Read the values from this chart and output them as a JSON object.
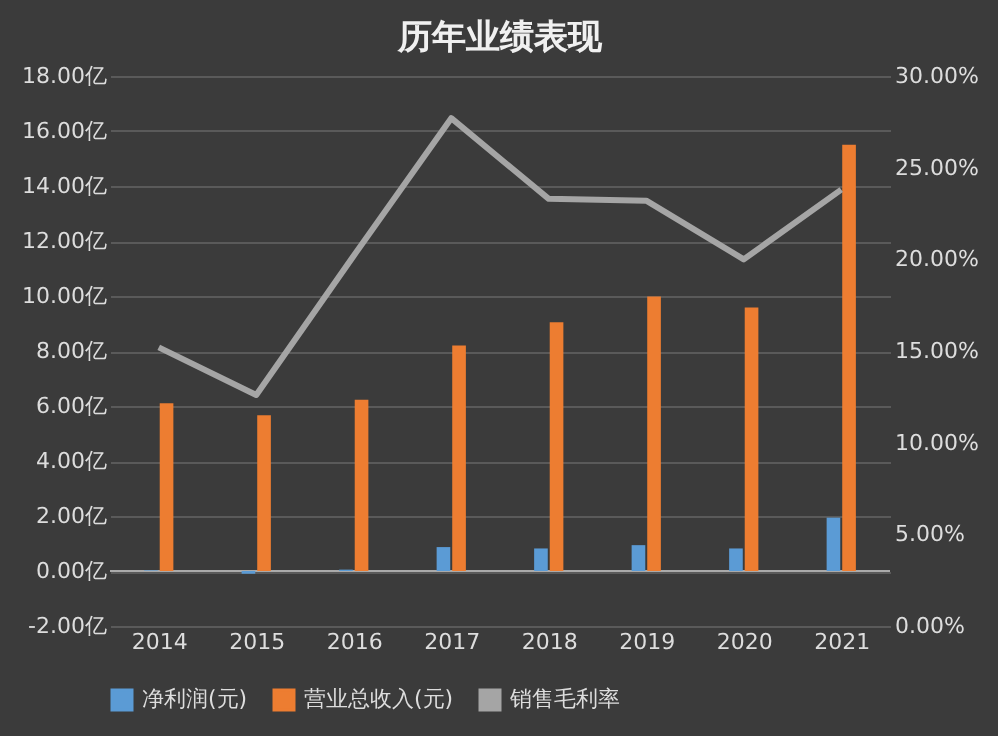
{
  "chart_data": {
    "type": "bar",
    "title": "历年业绩表现",
    "categories": [
      "2014",
      "2015",
      "2016",
      "2017",
      "2018",
      "2019",
      "2020",
      "2021"
    ],
    "series": [
      {
        "name": "净利润(元)",
        "color": "#5b9bd5",
        "values": [
          0.02,
          -0.1,
          0.05,
          0.87,
          0.82,
          0.94,
          0.82,
          1.94
        ]
      },
      {
        "name": "营业总收入(元)",
        "color": "#ed7d31",
        "values": [
          6.1,
          5.66,
          6.23,
          8.2,
          9.05,
          9.98,
          9.58,
          15.5
        ]
      },
      {
        "name": "销售毛利率",
        "color": "#a5a5a5",
        "type": "line",
        "axis": "y2",
        "values": [
          15.2,
          12.6,
          20.2,
          27.7,
          23.3,
          23.2,
          20.0,
          23.8
        ]
      }
    ],
    "ylim": [
      -2,
      18
    ],
    "yticks": [
      {
        "value": -2,
        "label": "-2.00亿"
      },
      {
        "value": 0,
        "label": "0.00亿"
      },
      {
        "value": 2,
        "label": "2.00亿"
      },
      {
        "value": 4,
        "label": "4.00亿"
      },
      {
        "value": 6,
        "label": "6.00亿"
      },
      {
        "value": 8,
        "label": "8.00亿"
      },
      {
        "value": 10,
        "label": "10.00亿"
      },
      {
        "value": 12,
        "label": "12.00亿"
      },
      {
        "value": 14,
        "label": "14.00亿"
      },
      {
        "value": 16,
        "label": "16.00亿"
      },
      {
        "value": 18,
        "label": "18.00亿"
      }
    ],
    "y2lim": [
      0,
      30
    ],
    "y2ticks": [
      {
        "value": 0,
        "label": "0.00%"
      },
      {
        "value": 5,
        "label": "5.00%"
      },
      {
        "value": 10,
        "label": "10.00%"
      },
      {
        "value": 15,
        "label": "15.00%"
      },
      {
        "value": 20,
        "label": "20.00%"
      },
      {
        "value": 25,
        "label": "25.00%"
      },
      {
        "value": 30,
        "label": "30.00%"
      }
    ],
    "grid": "y",
    "legend": "bottom"
  }
}
